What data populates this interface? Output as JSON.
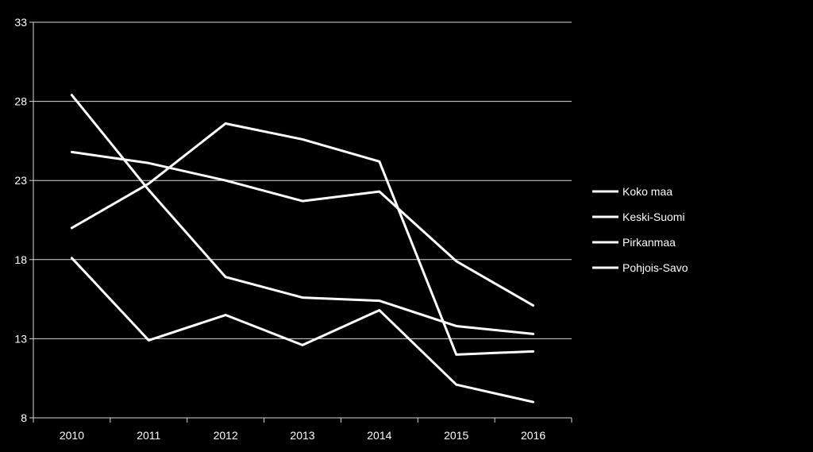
{
  "chart_data": {
    "type": "line",
    "title": "",
    "xlabel": "",
    "ylabel": "",
    "categories": [
      "2010",
      "2011",
      "2012",
      "2013",
      "2014",
      "2015",
      "2016"
    ],
    "ylim": [
      8,
      33
    ],
    "yticks": [
      "8",
      "13",
      "18",
      "23",
      "28",
      "33"
    ],
    "grid": true,
    "legend_position": "right",
    "line_color": "#ffffff",
    "background_color": "#000000",
    "series": [
      {
        "name": "Koko maa",
        "values": [
          24.8,
          24.1,
          23.0,
          21.7,
          22.3,
          17.9,
          15.1
        ]
      },
      {
        "name": "Keski-Suomi",
        "values": [
          18.1,
          12.9,
          14.5,
          12.6,
          14.8,
          10.1,
          9.0
        ]
      },
      {
        "name": "Pirkanmaa",
        "values": [
          20.0,
          22.8,
          26.6,
          25.6,
          24.2,
          12.0,
          12.2
        ]
      },
      {
        "name": "Pohjois-Savo",
        "values": [
          28.4,
          22.4,
          16.9,
          15.6,
          15.4,
          13.8,
          13.3
        ]
      }
    ]
  }
}
